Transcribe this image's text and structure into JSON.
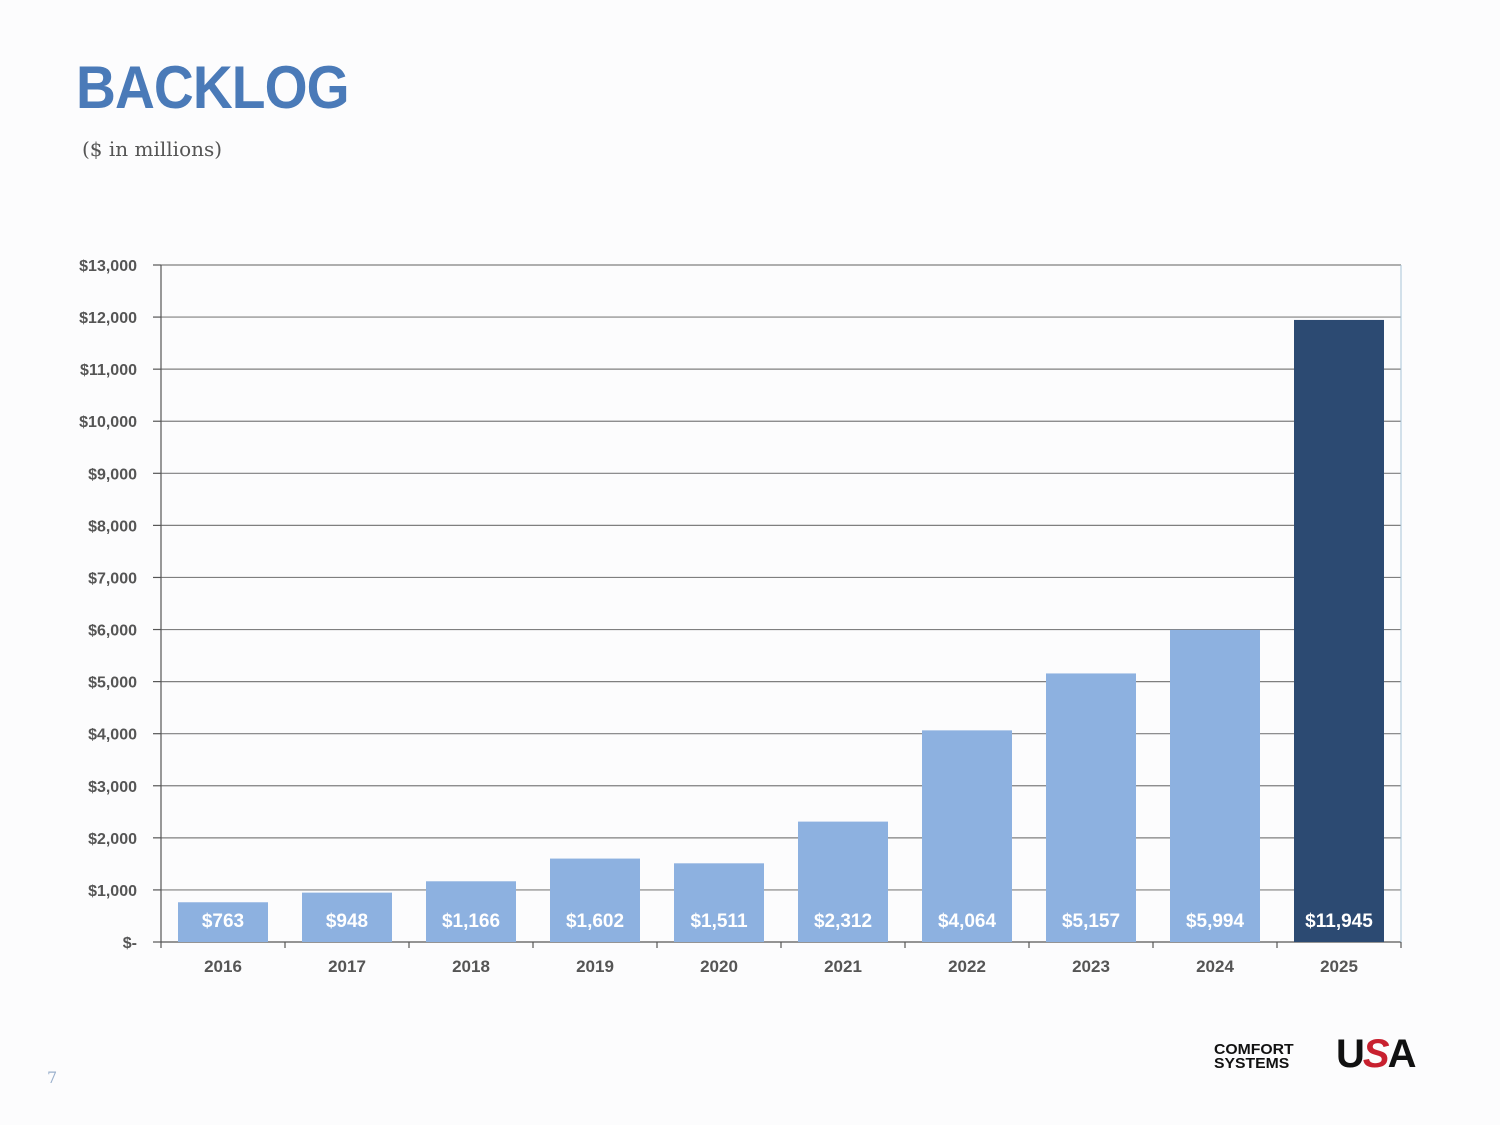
{
  "header": {
    "title": "BACKLOG",
    "subtitle": "($ in millions)"
  },
  "footer": {
    "page_number": "7",
    "logo": {
      "line1": "COMFORT",
      "line2": "SYSTEMS",
      "mark_u": "U",
      "mark_s": "S",
      "mark_a": "A"
    }
  },
  "colors": {
    "title": "#4a7ab8",
    "bar": "#8db1e0",
    "bar_highlight": "#2c4a72",
    "gridline": "#7f7f7f"
  },
  "chart_data": {
    "type": "bar",
    "title": "BACKLOG",
    "subtitle": "($ in millions)",
    "categories": [
      "2016",
      "2017",
      "2018",
      "2019",
      "2020",
      "2021",
      "2022",
      "2023",
      "2024",
      "2025"
    ],
    "values": [
      763,
      948,
      1166,
      1602,
      1511,
      2312,
      4064,
      5157,
      5994,
      11945
    ],
    "data_labels": [
      "$763",
      "$948",
      "$1,166",
      "$1,602",
      "$1,511",
      "$2,312",
      "$4,064",
      "$5,157",
      "$5,994",
      "$11,945"
    ],
    "highlight_index": 9,
    "ylim": [
      0,
      13000
    ],
    "yticks": [
      0,
      1000,
      2000,
      3000,
      4000,
      5000,
      6000,
      7000,
      8000,
      9000,
      10000,
      11000,
      12000,
      13000
    ],
    "ytick_labels": [
      "$-",
      "$1,000",
      "$2,000",
      "$3,000",
      "$4,000",
      "$5,000",
      "$6,000",
      "$7,000",
      "$8,000",
      "$9,000",
      "$10,000",
      "$11,000",
      "$12,000",
      "$13,000"
    ],
    "grid": true,
    "legend": "none"
  }
}
